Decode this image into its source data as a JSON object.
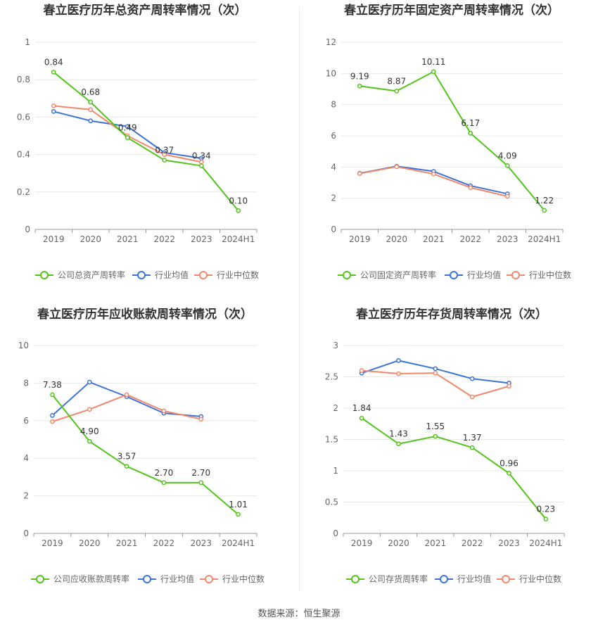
{
  "source": "数据来源：恒生聚源",
  "colors": {
    "company": "#52c41a",
    "avg": "#3a73d9",
    "median": "#f2886b",
    "grid": "#e8e8e8",
    "axis": "#999999",
    "text": "#666666",
    "title": "#333333"
  },
  "chart_data": [
    {
      "type": "line",
      "title": "春立医疗历年总资产周转率情况（次）",
      "categories": [
        "2019",
        "2020",
        "2021",
        "2022",
        "2023",
        "2024H1"
      ],
      "ylim": [
        0,
        1
      ],
      "yticks": [
        0,
        0.2,
        0.4,
        0.6,
        0.8,
        1
      ],
      "ytick_labels": [
        "0",
        "0.2",
        "0.4",
        "0.6",
        "0.8",
        "1"
      ],
      "series": [
        {
          "name": "公司总资产周转率",
          "role": "company",
          "values": [
            0.84,
            0.68,
            0.49,
            0.37,
            0.34,
            0.1
          ],
          "labels": [
            "0.84",
            "0.68",
            "0.49",
            "0.37",
            "0.34",
            "0.10"
          ]
        },
        {
          "name": "行业均值",
          "role": "avg",
          "values": [
            0.63,
            0.58,
            0.55,
            0.41,
            0.38,
            null
          ]
        },
        {
          "name": "行业中位数",
          "role": "median",
          "values": [
            0.66,
            0.64,
            0.5,
            0.4,
            0.36,
            null
          ]
        }
      ]
    },
    {
      "type": "line",
      "title": "春立医疗历年固定资产周转率情况（次）",
      "categories": [
        "2019",
        "2020",
        "2021",
        "2022",
        "2023",
        "2024H1"
      ],
      "ylim": [
        0,
        12
      ],
      "yticks": [
        0,
        2,
        4,
        6,
        8,
        10,
        12
      ],
      "ytick_labels": [
        "0",
        "2",
        "4",
        "6",
        "8",
        "10",
        "12"
      ],
      "series": [
        {
          "name": "公司固定资产周转率",
          "role": "company",
          "values": [
            9.19,
            8.87,
            10.11,
            6.17,
            4.09,
            1.22
          ],
          "labels": [
            "9.19",
            "8.87",
            "10.11",
            "6.17",
            "4.09",
            "1.22"
          ]
        },
        {
          "name": "行业均值",
          "role": "avg",
          "values": [
            3.6,
            4.05,
            3.72,
            2.8,
            2.28,
            null
          ]
        },
        {
          "name": "行业中位数",
          "role": "median",
          "values": [
            3.58,
            4.02,
            3.55,
            2.68,
            2.12,
            null
          ]
        }
      ]
    },
    {
      "type": "line",
      "title": "春立医疗历年应收账款周转率情况（次）",
      "categories": [
        "2019",
        "2020",
        "2021",
        "2022",
        "2023",
        "2024H1"
      ],
      "ylim": [
        0,
        10
      ],
      "yticks": [
        0,
        2,
        4,
        6,
        8,
        10
      ],
      "ytick_labels": [
        "0",
        "2",
        "4",
        "6",
        "8",
        "10"
      ],
      "series": [
        {
          "name": "公司应收账款周转率",
          "role": "company",
          "values": [
            7.38,
            4.9,
            3.57,
            2.7,
            2.7,
            1.01
          ],
          "labels": [
            "7.38",
            "4.90",
            "3.57",
            "2.70",
            "2.70",
            "1.01"
          ]
        },
        {
          "name": "行业均值",
          "role": "avg",
          "values": [
            6.28,
            8.05,
            7.28,
            6.4,
            6.22,
            null
          ]
        },
        {
          "name": "行业中位数",
          "role": "median",
          "values": [
            5.95,
            6.6,
            7.38,
            6.52,
            6.08,
            null
          ]
        }
      ]
    },
    {
      "type": "line",
      "title": "春立医疗历年存货周转率情况（次）",
      "categories": [
        "2019",
        "2020",
        "2021",
        "2022",
        "2023",
        "2024H1"
      ],
      "ylim": [
        0,
        3
      ],
      "yticks": [
        0,
        0.5,
        1,
        1.5,
        2,
        2.5,
        3
      ],
      "ytick_labels": [
        "0",
        "0.5",
        "1",
        "1.5",
        "2",
        "2.5",
        "3"
      ],
      "series": [
        {
          "name": "公司存货周转率",
          "role": "company",
          "values": [
            1.84,
            1.43,
            1.55,
            1.37,
            0.96,
            0.23
          ],
          "labels": [
            "1.84",
            "1.43",
            "1.55",
            "1.37",
            "0.96",
            "0.23"
          ]
        },
        {
          "name": "行业均值",
          "role": "avg",
          "values": [
            2.56,
            2.76,
            2.63,
            2.47,
            2.4,
            null
          ]
        },
        {
          "name": "行业中位数",
          "role": "median",
          "values": [
            2.6,
            2.55,
            2.56,
            2.18,
            2.35,
            null
          ]
        }
      ]
    }
  ]
}
